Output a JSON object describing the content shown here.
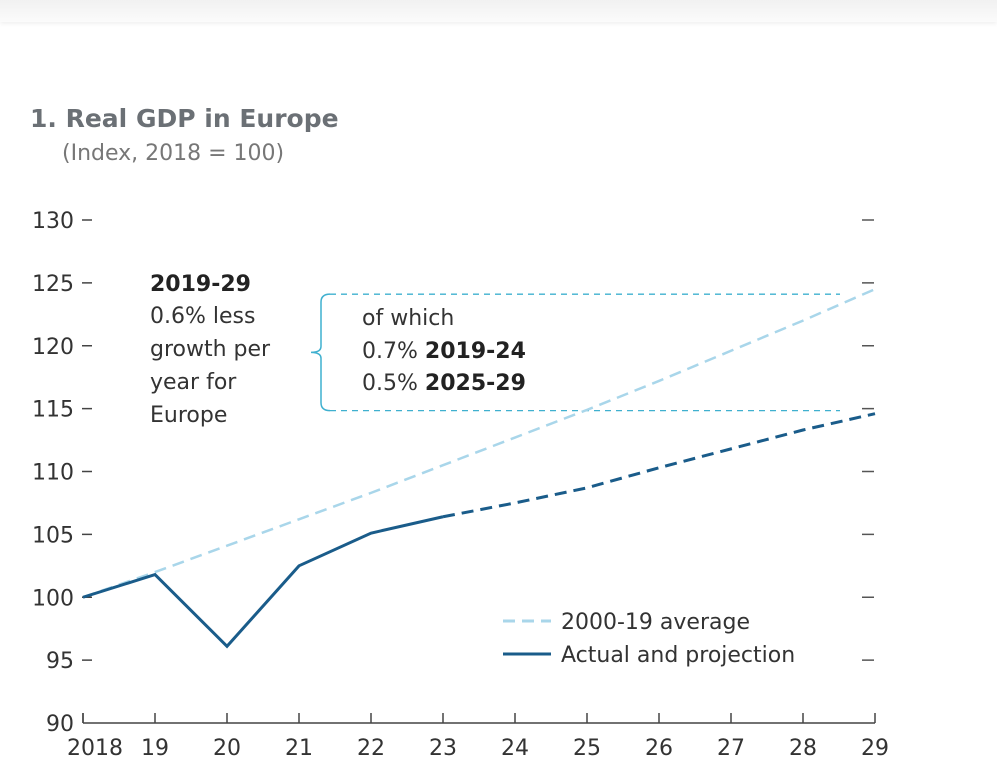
{
  "chart_data": {
    "type": "line",
    "title": "1. Real GDP in Europe",
    "subtitle": "(Index, 2018 = 100)",
    "xlabel": "",
    "ylabel": "",
    "x": [
      2018,
      2019,
      2020,
      2021,
      2022,
      2023,
      2024,
      2025,
      2026,
      2027,
      2028,
      2029
    ],
    "x_tick_labels": [
      "2018",
      "19",
      "20",
      "21",
      "22",
      "23",
      "24",
      "25",
      "26",
      "27",
      "28",
      "29"
    ],
    "y_ticks": [
      90,
      95,
      100,
      105,
      110,
      115,
      120,
      125,
      130
    ],
    "ylim": [
      90,
      130
    ],
    "grid": false,
    "legend_position": "bottom-right",
    "series": [
      {
        "name": "2000-19 average",
        "style": "dashed",
        "color": "#a9d6ea",
        "values": [
          100,
          102.0,
          104.1,
          106.2,
          108.3,
          110.5,
          112.7,
          114.9,
          117.2,
          119.6,
          122.0,
          124.5
        ]
      },
      {
        "name": "Actual and projection",
        "style": "solid-then-dashed",
        "projection_from": 2023,
        "color": "#1a5c8a",
        "values": [
          100,
          101.8,
          96.1,
          102.5,
          105.1,
          106.4,
          107.5,
          108.7,
          110.3,
          111.8,
          113.3,
          114.6
        ]
      }
    ],
    "annotations": {
      "left": {
        "heading": "2019-29",
        "lines": [
          "0.6% less",
          "growth per",
          "year for",
          "Europe"
        ]
      },
      "right": {
        "intro": "of which",
        "items": [
          {
            "value": "0.7%",
            "period": "2019-24"
          },
          {
            "value": "0.5%",
            "period": "2025-29"
          }
        ]
      },
      "bracket_color": "#3fb0cf"
    }
  }
}
